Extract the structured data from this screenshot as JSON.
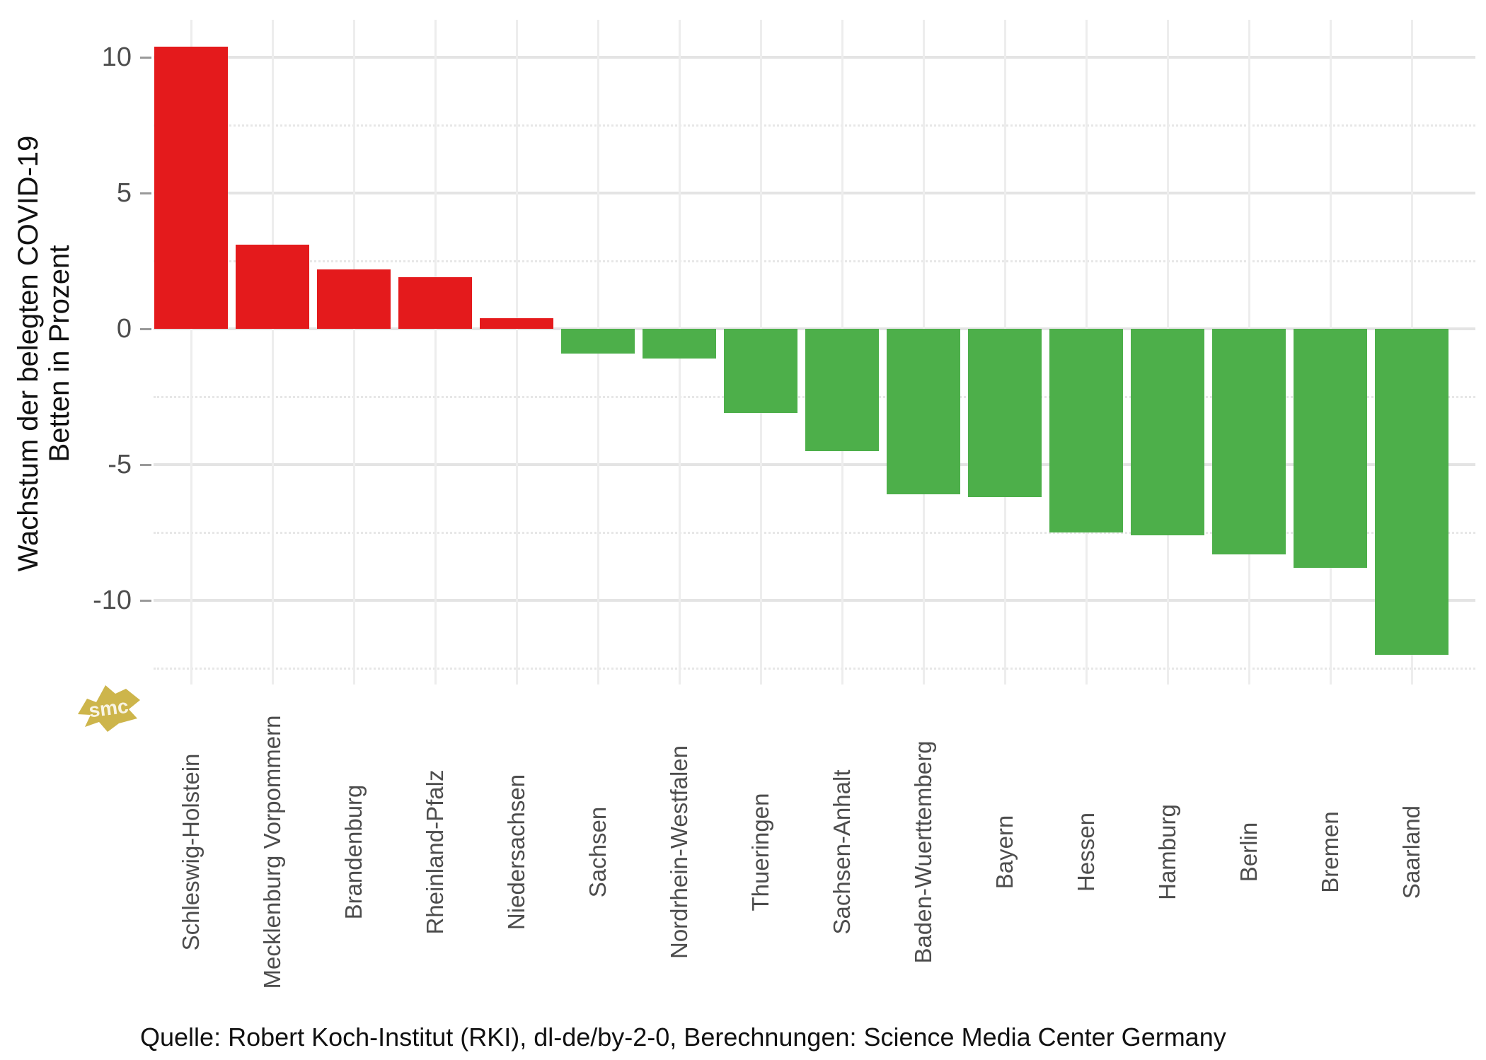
{
  "chart_data": {
    "type": "bar",
    "title": "",
    "ylabel_lines": [
      "Wachstum der belegten COVID-19",
      "Betten in Prozent"
    ],
    "categories": [
      "Schleswig-Holstein",
      "Mecklenburg Vorpommern",
      "Brandenburg",
      "Rheinland-Pfalz",
      "Niedersachsen",
      "Sachsen",
      "Nordrhein-Westfalen",
      "Thueringen",
      "Sachsen-Anhalt",
      "Baden-Wuerttemberg",
      "Bayern",
      "Hessen",
      "Hamburg",
      "Berlin",
      "Bremen",
      "Saarland"
    ],
    "values": [
      10.4,
      3.1,
      2.2,
      1.9,
      0.4,
      -0.9,
      -1.1,
      -3.1,
      -4.5,
      -6.1,
      -6.2,
      -7.5,
      -7.6,
      -8.3,
      -8.8,
      -12.0
    ],
    "y_ticks": [
      10,
      5,
      0,
      -5,
      -10
    ],
    "y_minor_ticks": [
      7.5,
      2.5,
      -2.5,
      -7.5,
      -12.5
    ],
    "ylim": [
      -13.1,
      11.4
    ],
    "grid": "on",
    "legend": "none",
    "colors": {
      "positive_bar": "#e41a1c",
      "negative_bar": "#4daf4a",
      "grid_major": "#e4e4e4",
      "grid_minor": "#e7e7e7",
      "grid_vertical": "#ededed",
      "tick_mark": "#999999",
      "tick_text": "#4d4d4d",
      "axis_title_text": "#111111",
      "logo_gold": "#cdb54b"
    }
  },
  "y_axis_title_text": "Wachstum der belegten COVID-19\nBetten in Prozent",
  "source_line": "Quelle: Robert Koch-Institut (RKI), dl-de/by-2-0, Berechnungen: Science Media Center Germany",
  "logo_text": "smc"
}
